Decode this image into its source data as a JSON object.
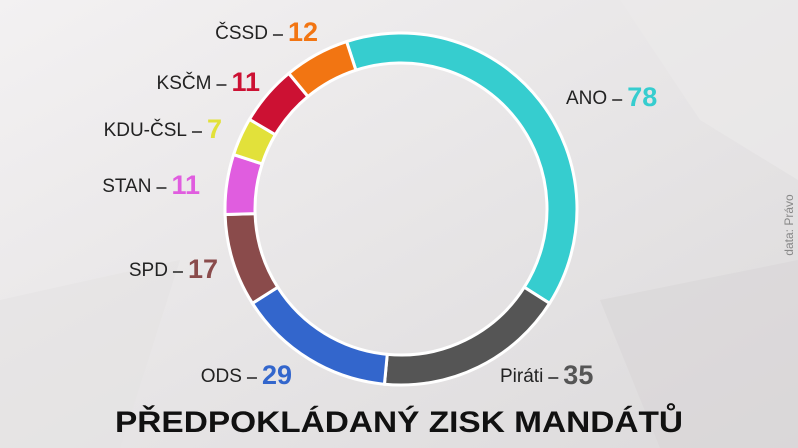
{
  "chart_data": {
    "type": "donut",
    "title": "PŘEDPOKLÁDANÝ ZISK MANDÁTŮ",
    "source": "data: Právo",
    "categories": [
      "ANO",
      "Piráti",
      "ODS",
      "SPD",
      "STAN",
      "KDU-ČSL",
      "KSČM",
      "ČSSD"
    ],
    "values": [
      78,
      35,
      29,
      17,
      11,
      7,
      11,
      12
    ],
    "colors": [
      "#36cdcf",
      "#555555",
      "#3366cc",
      "#8a4b4b",
      "#e05ddf",
      "#e2e13a",
      "#cc1133",
      "#f27512"
    ]
  }
}
